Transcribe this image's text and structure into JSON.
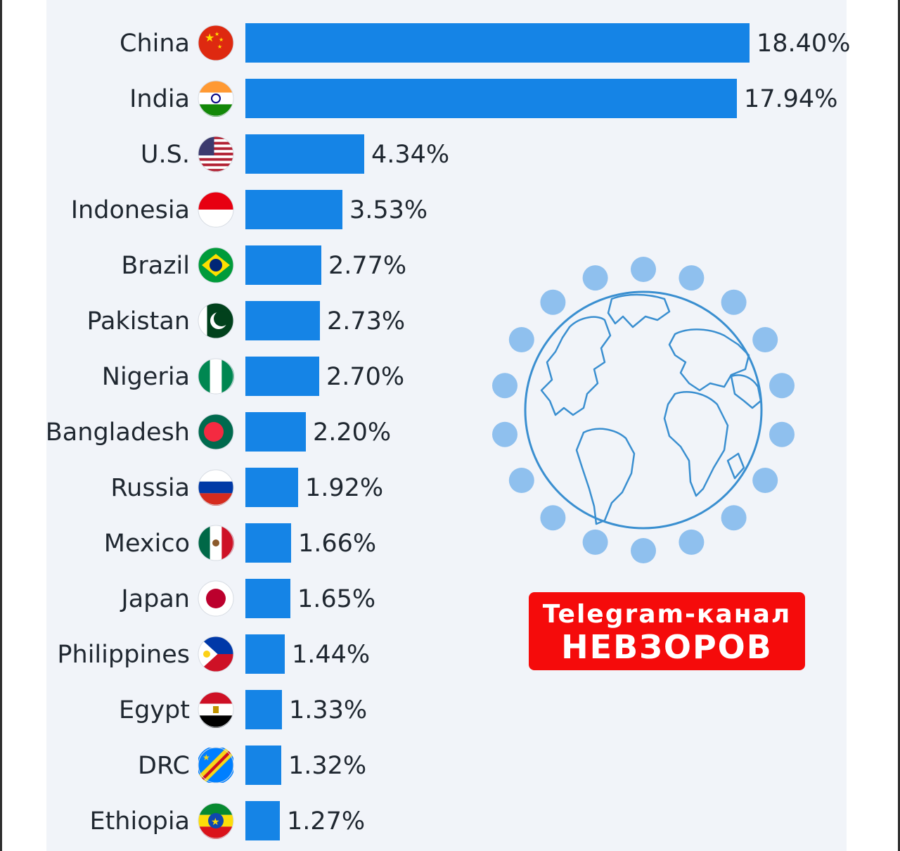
{
  "chart_data": {
    "type": "bar",
    "orientation": "horizontal",
    "categories": [
      "China",
      "India",
      "U.S.",
      "Indonesia",
      "Brazil",
      "Pakistan",
      "Nigeria",
      "Bangladesh",
      "Russia",
      "Mexico",
      "Japan",
      "Philippines",
      "Egypt",
      "DRC",
      "Ethiopia"
    ],
    "values": [
      18.4,
      17.94,
      4.34,
      3.53,
      2.77,
      2.73,
      2.7,
      2.2,
      1.92,
      1.66,
      1.65,
      1.44,
      1.33,
      1.32,
      1.27
    ],
    "value_labels": [
      "18.40%",
      "17.94%",
      "4.34%",
      "3.53%",
      "2.77%",
      "2.73%",
      "2.70%",
      "2.20%",
      "1.92%",
      "1.66%",
      "1.65%",
      "1.44%",
      "1.33%",
      "1.32%",
      "1.27%"
    ],
    "flag_icons": [
      "china-flag-icon",
      "india-flag-icon",
      "us-flag-icon",
      "indonesia-flag-icon",
      "brazil-flag-icon",
      "pakistan-flag-icon",
      "nigeria-flag-icon",
      "bangladesh-flag-icon",
      "russia-flag-icon",
      "mexico-flag-icon",
      "japan-flag-icon",
      "philippines-flag-icon",
      "egypt-flag-icon",
      "drc-flag-icon",
      "ethiopia-flag-icon"
    ],
    "bar_color": "#1584e6",
    "xlim": [
      0,
      18.4
    ]
  },
  "badge": {
    "line1": "Telegram-канал",
    "line2": "НЕВЗОРОВ",
    "color": "#f50b0b"
  },
  "globe": {
    "icon": "globe-icon",
    "color": "#3a8fd0",
    "dot_color": "#8fc0ee"
  }
}
